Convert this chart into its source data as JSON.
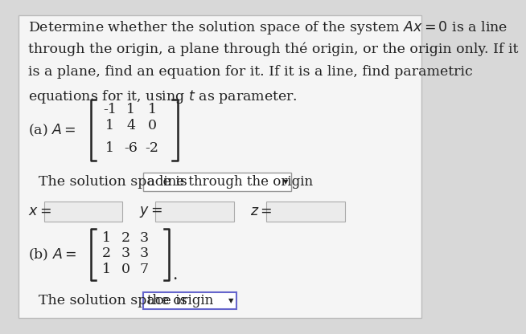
{
  "bg_color": "#d8d8d8",
  "panel_color": "#f5f5f5",
  "border_color": "#bbbbbb",
  "text_color": "#222222",
  "matrix_a": [
    [
      "-1",
      "1",
      "1"
    ],
    [
      "1",
      "4",
      "0"
    ],
    [
      "1",
      "-6",
      "-2"
    ]
  ],
  "matrix_b": [
    [
      "1",
      "2",
      "3"
    ],
    [
      "2",
      "3",
      "3"
    ],
    [
      "1",
      "0",
      "7"
    ]
  ],
  "dropdown_a_text": "a line through the origin",
  "dropdown_b_text": "the origin",
  "dropdown_a_border": "#999999",
  "dropdown_b_border": "#6666cc",
  "input_box_color": "#ebebeb",
  "input_box_border": "#aaaaaa",
  "font_size": 12.5,
  "title_lines": [
    "Determine whether the solution space of the system $Ax=0$ is a line",
    "through the origin, a plane through thé origin, or the origin only. If it",
    "is a plane, find an equation for it. If it is a line, find parametric",
    "equations for it, using $t$ as parameter."
  ]
}
